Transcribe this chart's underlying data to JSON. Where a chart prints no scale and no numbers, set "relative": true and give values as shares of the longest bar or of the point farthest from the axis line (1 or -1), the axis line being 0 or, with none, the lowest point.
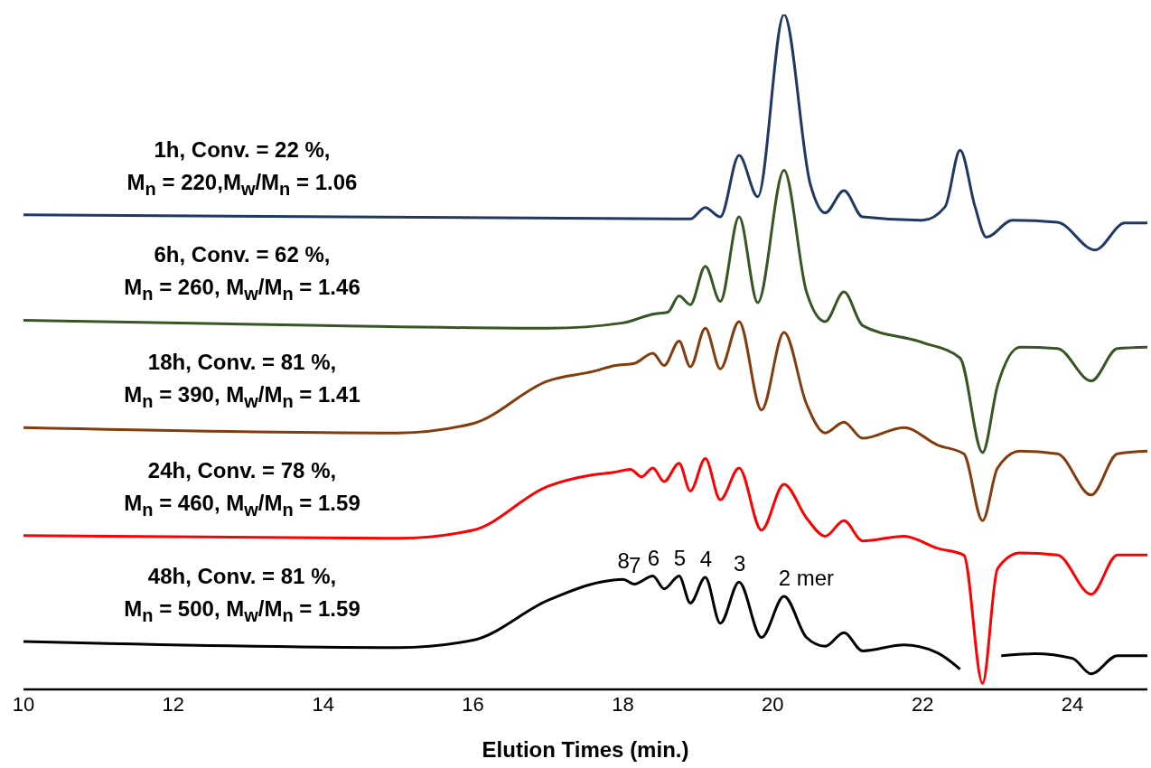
{
  "chart_data": {
    "type": "line",
    "relative": true,
    "xlabel": "Elution Times (min.)",
    "xlim": [
      10,
      25
    ],
    "xticks": [
      10,
      12,
      14,
      16,
      18,
      20,
      22,
      24
    ],
    "marker": "none",
    "line_style": "solid",
    "series": [
      {
        "name": "1h, Conv. = 22 %,\nM$_{n}$ = 220,M$_{w}$/M$_{n}$ = 1.06",
        "color": "#1f3864",
        "x": [
          10,
          18.9,
          19.1,
          19.3,
          19.55,
          19.8,
          20.15,
          20.5,
          20.7,
          20.95,
          21.2,
          22.0,
          22.3,
          22.5,
          22.7,
          22.85,
          23.2,
          23.8,
          24.3,
          24.7,
          25
        ],
        "values": [
          0.703,
          0.697,
          0.714,
          0.7,
          0.791,
          0.73,
          1.0,
          0.749,
          0.706,
          0.739,
          0.7,
          0.695,
          0.715,
          0.799,
          0.715,
          0.67,
          0.695,
          0.692,
          0.651,
          0.691,
          0.691
        ]
      },
      {
        "name": "6h, Conv. = 62 %,\nM$_{n}$ = 260, M$_{w}$/M$_{n}$ = 1.46",
        "color": "#375623",
        "x": [
          10,
          14,
          17,
          18,
          18.4,
          18.6,
          18.75,
          18.9,
          19.1,
          19.3,
          19.55,
          19.8,
          20.15,
          20.45,
          20.7,
          20.95,
          21.2,
          22.0,
          22.5,
          22.8,
          23.0,
          23.3,
          23.8,
          24.25,
          24.6,
          25
        ],
        "values": [
          0.547,
          0.539,
          0.535,
          0.543,
          0.556,
          0.559,
          0.583,
          0.57,
          0.627,
          0.575,
          0.7,
          0.573,
          0.769,
          0.589,
          0.545,
          0.589,
          0.539,
          0.514,
          0.491,
          0.351,
          0.45,
          0.507,
          0.505,
          0.457,
          0.505,
          0.507
        ]
      },
      {
        "name": "18h, Conv. = 81 %,\nM$_{n}$ = 390, M$_{w}$/M$_{n}$ = 1.41",
        "color": "#843c0c",
        "x": [
          10,
          15,
          16,
          17,
          17.6,
          17.9,
          18.15,
          18.4,
          18.55,
          18.75,
          18.9,
          19.1,
          19.3,
          19.55,
          19.85,
          20.15,
          20.45,
          20.7,
          20.95,
          21.2,
          21.75,
          22.2,
          22.55,
          22.8,
          23.0,
          23.3,
          23.8,
          24.25,
          24.6,
          25
        ],
        "values": [
          0.388,
          0.38,
          0.394,
          0.457,
          0.471,
          0.48,
          0.483,
          0.498,
          0.48,
          0.516,
          0.478,
          0.535,
          0.475,
          0.545,
          0.414,
          0.529,
          0.423,
          0.38,
          0.396,
          0.372,
          0.388,
          0.362,
          0.349,
          0.25,
          0.328,
          0.353,
          0.349,
          0.288,
          0.349,
          0.353
        ]
      },
      {
        "name": "24h, Conv. = 78 %,\nM$_{n}$ = 460, M$_{w}$/M$_{n}$ = 1.59",
        "color": "#ff0000",
        "x": [
          10,
          15,
          16,
          17,
          17.6,
          17.9,
          18.1,
          18.25,
          18.4,
          18.55,
          18.75,
          18.9,
          19.1,
          19.3,
          19.55,
          19.85,
          20.15,
          20.45,
          20.7,
          20.95,
          21.2,
          21.75,
          22.2,
          22.55,
          22.8,
          23.0,
          23.3,
          23.8,
          24.25,
          24.6,
          25
        ],
        "values": [
          0.228,
          0.224,
          0.236,
          0.301,
          0.318,
          0.322,
          0.326,
          0.315,
          0.328,
          0.308,
          0.335,
          0.294,
          0.342,
          0.281,
          0.328,
          0.236,
          0.304,
          0.254,
          0.227,
          0.25,
          0.22,
          0.227,
          0.209,
          0.199,
          0.009,
          0.179,
          0.202,
          0.199,
          0.141,
          0.199,
          0.199
        ]
      },
      {
        "name": "48h, Conv. = 81 %,\nM$_{n}$ = 500, M$_{w}$/M$_{n}$ = 1.59",
        "color": "#000000",
        "x": [
          10,
          15,
          16,
          17,
          17.7,
          18.0,
          18.15,
          18.4,
          18.55,
          18.75,
          18.9,
          19.1,
          19.3,
          19.55,
          19.85,
          20.15,
          20.45,
          20.7,
          20.95,
          21.2,
          21.75,
          22.2,
          22.5,
          22.75,
          22.85,
          23.05,
          23.5,
          24.0,
          24.25,
          24.6,
          25
        ],
        "values": [
          0.071,
          0.062,
          0.073,
          0.132,
          0.159,
          0.163,
          0.156,
          0.168,
          0.149,
          0.168,
          0.128,
          0.166,
          0.098,
          0.159,
          0.077,
          0.138,
          0.077,
          0.064,
          0.084,
          0.057,
          0.066,
          0.054,
          0.03,
          null,
          null,
          0.05,
          0.053,
          0.046,
          0.023,
          0.05,
          0.05
        ]
      }
    ],
    "annotations": [
      {
        "text": "8",
        "x": 18.0,
        "y": 0.163
      },
      {
        "text": "7",
        "x": 18.15,
        "y": 0.156
      },
      {
        "text": "6",
        "x": 18.4,
        "y": 0.168
      },
      {
        "text": "5",
        "x": 18.75,
        "y": 0.168
      },
      {
        "text": "4",
        "x": 19.1,
        "y": 0.166
      },
      {
        "text": "3",
        "x": 19.55,
        "y": 0.159
      },
      {
        "text": "2 mer",
        "x": 20.15,
        "y": 0.138
      }
    ]
  }
}
